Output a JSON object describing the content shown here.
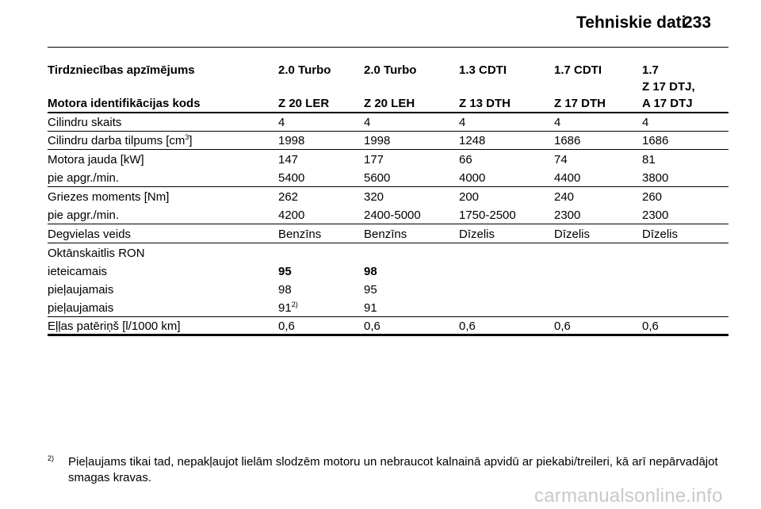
{
  "header": {
    "title": "Tehniskie dati",
    "page_number": "233"
  },
  "table": {
    "head_row1": [
      "Tirdzniecības apzīmējums",
      "2.0 Turbo",
      "2.0 Turbo",
      "1.3 CDTI",
      "1.7 CDTI",
      "1.7"
    ],
    "head_extra": "Z 17 DTJ,",
    "head_row2": [
      "Motora identifikācijas kods",
      "Z 20 LER",
      "Z 20 LEH",
      "Z 13 DTH",
      "Z 17 DTH",
      "A 17 DTJ"
    ],
    "cylinders": [
      "Cilindru skaits",
      "4",
      "4",
      "4",
      "4",
      "4"
    ],
    "displacement_label_pre": "Cilindru darba tilpums [cm",
    "displacement_sup": "3",
    "displacement_label_post": "]",
    "displacement": [
      "1998",
      "1998",
      "1248",
      "1686",
      "1686"
    ],
    "power": [
      "Motora jauda [kW]",
      "147",
      "177",
      "66",
      "74",
      "81"
    ],
    "power_rpm": [
      "pie apgr./min.",
      "5400",
      "5600",
      "4000",
      "4400",
      "3800"
    ],
    "torque": [
      "Griezes moments [Nm]",
      "262",
      "320",
      "200",
      "240",
      "260"
    ],
    "torque_rpm": [
      "pie apgr./min.",
      "4200",
      "2400-5000",
      "1750-2500",
      "2300",
      "2300"
    ],
    "fuel": [
      "Degvielas veids",
      "Benzīns",
      "Benzīns",
      "Dīzelis",
      "Dīzelis",
      "Dīzelis"
    ],
    "octane_title": "Oktānskaitlis RON",
    "octane_rec": [
      "ieteicamais",
      "95",
      "98"
    ],
    "octane_perm1": [
      "pieļaujamais",
      "98",
      "95"
    ],
    "octane_perm2_label": "pieļaujamais",
    "octane_perm2_v1": "91",
    "octane_perm2_v1_sup": "2)",
    "octane_perm2_v2": "91",
    "oil": [
      "Eļļas patēriņš [l/1000 km]",
      "0,6",
      "0,6",
      "0,6",
      "0,6",
      "0,6"
    ]
  },
  "footnote": {
    "mark": "2)",
    "text": "Pieļaujams tikai tad, nepakļaujot lielām slodzēm motoru un nebraucot kalnainā apvidū ar piekabi/treileri, kā arī nepārvadājot smagas kravas."
  },
  "watermark": "carmanualsonline.info"
}
